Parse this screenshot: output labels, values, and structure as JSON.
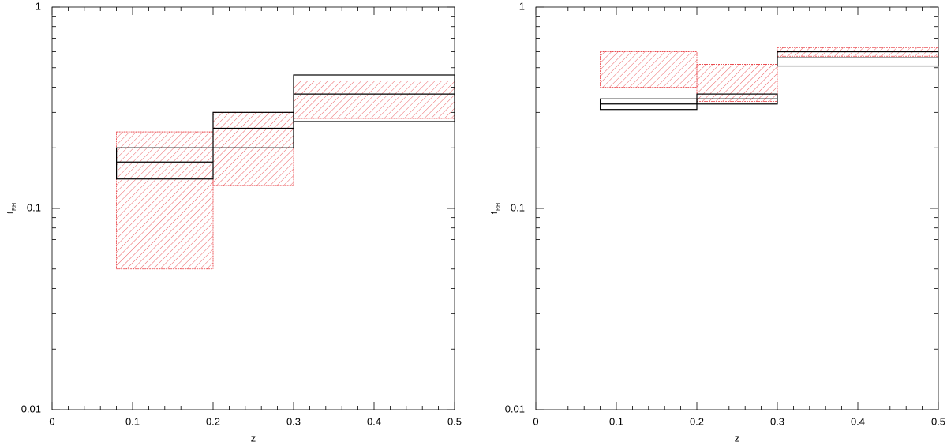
{
  "chart_data": [
    {
      "type": "bandstep",
      "xlabel": "z",
      "ylabel": "f",
      "ylabel_sub": "RH",
      "xlim": [
        0,
        0.5
      ],
      "xticks": [
        0,
        0.1,
        0.2,
        0.3,
        0.4,
        0.5
      ],
      "xminor": [
        0.02,
        0.04,
        0.06,
        0.08,
        0.12,
        0.14,
        0.16,
        0.18,
        0.22,
        0.24,
        0.26,
        0.28,
        0.32,
        0.34,
        0.36,
        0.38,
        0.42,
        0.44,
        0.46,
        0.48
      ],
      "ylim": [
        0.01,
        1
      ],
      "yticks": [
        0.01,
        0.1,
        1
      ],
      "ylog": true,
      "yminor": [
        0.02,
        0.03,
        0.04,
        0.05,
        0.06,
        0.07,
        0.08,
        0.09,
        0.2,
        0.3,
        0.4,
        0.5,
        0.6,
        0.7,
        0.8,
        0.9
      ],
      "bin_lo": [
        0.08,
        0.2,
        0.3
      ],
      "bin_hi": [
        0.2,
        0.3,
        0.5
      ],
      "red_low": [
        0.05,
        0.13,
        0.28
      ],
      "red_high": [
        0.24,
        0.3,
        0.43
      ],
      "black_low": [
        0.14,
        0.2,
        0.27
      ],
      "black_mid": [
        0.17,
        0.25,
        0.37
      ],
      "black_high": [
        0.2,
        0.3,
        0.46
      ],
      "red_color": "#e8383d",
      "black_color": "#000000"
    },
    {
      "type": "bandstep",
      "xlabel": "z",
      "ylabel": "f",
      "ylabel_sub": "RH",
      "xlim": [
        0,
        0.5
      ],
      "xticks": [
        0,
        0.1,
        0.2,
        0.3,
        0.4,
        0.5
      ],
      "xminor": [
        0.02,
        0.04,
        0.06,
        0.08,
        0.12,
        0.14,
        0.16,
        0.18,
        0.22,
        0.24,
        0.26,
        0.28,
        0.32,
        0.34,
        0.36,
        0.38,
        0.42,
        0.44,
        0.46,
        0.48
      ],
      "ylim": [
        0.01,
        1
      ],
      "yticks": [
        0.01,
        0.1,
        1
      ],
      "ylog": true,
      "yminor": [
        0.02,
        0.03,
        0.04,
        0.05,
        0.06,
        0.07,
        0.08,
        0.09,
        0.2,
        0.3,
        0.4,
        0.5,
        0.6,
        0.7,
        0.8,
        0.9
      ],
      "bin_lo": [
        0.08,
        0.2,
        0.3
      ],
      "bin_hi": [
        0.2,
        0.3,
        0.5
      ],
      "red_low": [
        0.4,
        0.34,
        0.57
      ],
      "red_high": [
        0.6,
        0.52,
        0.63
      ],
      "black_low": [
        0.31,
        0.33,
        0.51
      ],
      "black_mid": [
        0.33,
        0.35,
        0.56
      ],
      "black_high": [
        0.35,
        0.37,
        0.6
      ],
      "red_color": "#e8383d",
      "black_color": "#000000"
    }
  ]
}
